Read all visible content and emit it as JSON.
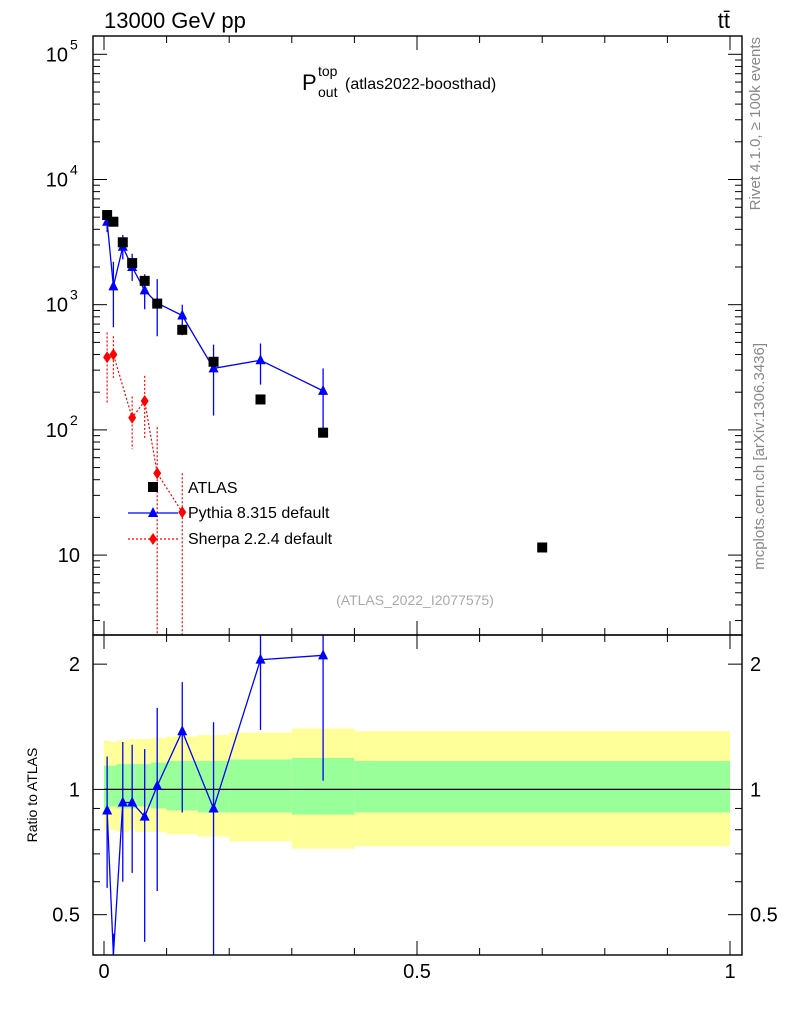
{
  "header": {
    "energy_label": "13000 GeV pp",
    "process_label": "tt̄",
    "rivet_label": "Rivet 4.1.0, ≥ 100k events",
    "mcplots_label": "mcplots.cern.ch [arXiv:1306.3436]",
    "analysis_id": "(ATLAS_2022_I2077575)"
  },
  "colors": {
    "data": "#000000",
    "pythia": "#0000ff",
    "sherpa": "#ff0000",
    "band_inner": "#99ff99",
    "band_outer": "#ffff99"
  },
  "chart_data": {
    "type": "scatter",
    "title": {
      "main": "P",
      "superscript": "top",
      "subscript": "out",
      "suffix": "(atlas2022-boosthad)"
    },
    "xlim": [
      0,
      1
    ],
    "main_ylim_log": [
      2.3,
      140000
    ],
    "ratio_ylim_log": [
      0.4,
      2.35
    ],
    "ratio_ylabel": "Ratio to ATLAS",
    "x_ticks": [
      {
        "value": 0,
        "label": "0"
      },
      {
        "value": 0.5,
        "label": "0.5"
      },
      {
        "value": 1,
        "label": "1"
      }
    ],
    "main_y_ticks": [
      {
        "value": 10,
        "base": "10",
        "exp": ""
      },
      {
        "value": 100,
        "base": "10",
        "exp": "2"
      },
      {
        "value": 1000,
        "base": "10",
        "exp": "3"
      },
      {
        "value": 10000,
        "base": "10",
        "exp": "4"
      },
      {
        "value": 100000,
        "base": "10",
        "exp": "5"
      }
    ],
    "ratio_y_ticks": [
      {
        "value": 0.5,
        "label": "0.5"
      },
      {
        "value": 1,
        "label": "1"
      },
      {
        "value": 2,
        "label": "2"
      }
    ],
    "legend": [
      {
        "key": "data",
        "label": "ATLAS"
      },
      {
        "key": "pythia",
        "label": "Pythia 8.315 default"
      },
      {
        "key": "sherpa",
        "label": "Sherpa 2.2.4 default"
      }
    ],
    "data_series": {
      "name": "ATLAS",
      "x": [
        0.005,
        0.015,
        0.03,
        0.045,
        0.065,
        0.085,
        0.125,
        0.175,
        0.25,
        0.35,
        0.7
      ],
      "y": [
        5200,
        4600,
        3150,
        2150,
        1550,
        1020,
        630,
        350,
        175,
        95,
        11.5
      ]
    },
    "pythia_series": {
      "name": "Pythia 8.315 default",
      "x": [
        0.005,
        0.015,
        0.03,
        0.045,
        0.065,
        0.085,
        0.125,
        0.175,
        0.25,
        0.35
      ],
      "y": [
        4600,
        1400,
        2900,
        2000,
        1300,
        1030,
        820,
        310,
        360,
        205
      ],
      "err_low": [
        3800,
        660,
        2300,
        1550,
        920,
        560,
        570,
        130,
        230,
        95
      ],
      "err_high": [
        5700,
        2200,
        3600,
        2550,
        1750,
        1600,
        1000,
        480,
        490,
        310
      ]
    },
    "sherpa_series": {
      "name": "Sherpa 2.2.4 default",
      "x": [
        0.005,
        0.015,
        0.045,
        0.065,
        0.085,
        0.125
      ],
      "y": [
        380,
        400,
        125,
        170,
        45,
        22
      ],
      "err_low": [
        160,
        260,
        70,
        85,
        2,
        2
      ],
      "err_high": [
        600,
        560,
        185,
        270,
        105,
        45
      ]
    },
    "ratio_pythia": {
      "x": [
        0.005,
        0.015,
        0.03,
        0.045,
        0.065,
        0.085,
        0.125,
        0.175,
        0.25,
        0.35
      ],
      "y": [
        0.89,
        0.305,
        0.93,
        0.93,
        0.86,
        1.02,
        1.38,
        0.9,
        2.05,
        2.1
      ],
      "err_low": [
        0.58,
        0.2,
        0.6,
        0.63,
        0.43,
        0.57,
        0.88,
        0.3,
        1.39,
        1.05
      ],
      "err_high": [
        1.2,
        0.45,
        1.3,
        1.28,
        1.25,
        1.57,
        1.81,
        1.45,
        2.45,
        2.45
      ]
    },
    "ratio_bands": {
      "edges": [
        0,
        0.01,
        0.02,
        0.04,
        0.05,
        0.075,
        0.1,
        0.15,
        0.2,
        0.3,
        0.4,
        1.0
      ],
      "inner_low": [
        0.9,
        0.91,
        0.9,
        0.9,
        0.91,
        0.9,
        0.89,
        0.88,
        0.88,
        0.87,
        0.88
      ],
      "inner_high": [
        1.14,
        1.14,
        1.15,
        1.15,
        1.15,
        1.16,
        1.17,
        1.17,
        1.18,
        1.19,
        1.17
      ],
      "outer_low": [
        0.8,
        0.8,
        0.79,
        0.8,
        0.79,
        0.79,
        0.78,
        0.77,
        0.75,
        0.72,
        0.73
      ],
      "outer_high": [
        1.31,
        1.3,
        1.31,
        1.32,
        1.32,
        1.33,
        1.34,
        1.35,
        1.37,
        1.4,
        1.38
      ]
    }
  }
}
